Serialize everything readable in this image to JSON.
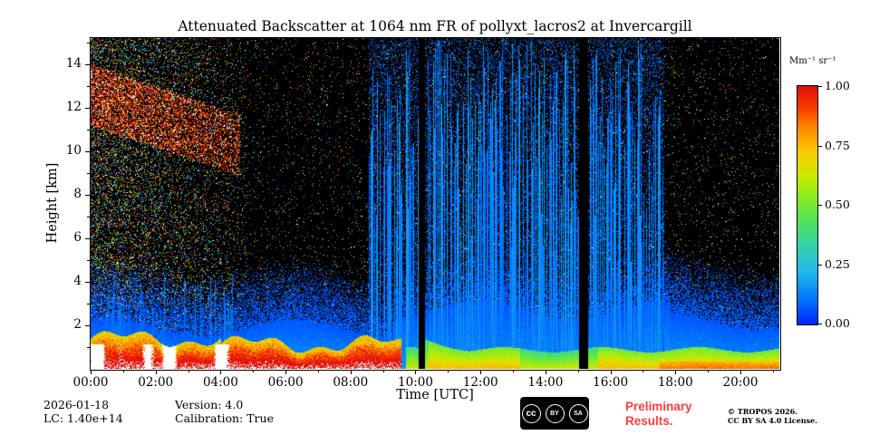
{
  "chart_data": {
    "type": "heatmap",
    "title": "Attenuated Backscatter at 1064 nm FR of pollyxt_lacros2 at Invercargill",
    "xlabel": "Time [UTC]",
    "ylabel": "Height [km]",
    "x_ticks": [
      "00:00",
      "02:00",
      "04:00",
      "06:00",
      "08:00",
      "10:00",
      "12:00",
      "14:00",
      "16:00",
      "18:00",
      "20:00"
    ],
    "x_tick_hours": [
      0,
      2,
      4,
      6,
      8,
      10,
      12,
      14,
      16,
      18,
      20
    ],
    "x_minor_hours": [
      1,
      3,
      5,
      7,
      9,
      11,
      13,
      15,
      17,
      19,
      21
    ],
    "x_range_hours": [
      0,
      21.2
    ],
    "y_ticks": [
      2,
      4,
      6,
      8,
      10,
      12,
      14
    ],
    "y_minor_ticks": [
      1,
      3,
      5,
      7,
      9,
      11,
      13,
      15
    ],
    "y_range_km": [
      0,
      15.2
    ],
    "grid": false,
    "colorbar": {
      "label": "Mm⁻¹ sr⁻¹",
      "ticks": [
        "1.00",
        "0.75",
        "0.50",
        "0.25",
        "0.00"
      ],
      "tick_values": [
        1.0,
        0.75,
        0.5,
        0.25,
        0.0
      ],
      "range": [
        0,
        1
      ],
      "position": "right"
    },
    "colormap_stops": [
      [
        0.0,
        0,
        40,
        250
      ],
      [
        0.1,
        0,
        115,
        255
      ],
      [
        0.22,
        35,
        185,
        235
      ],
      [
        0.33,
        55,
        210,
        170
      ],
      [
        0.43,
        80,
        225,
        95
      ],
      [
        0.52,
        130,
        235,
        40
      ],
      [
        0.62,
        200,
        235,
        0
      ],
      [
        0.72,
        250,
        205,
        0
      ],
      [
        0.82,
        255,
        140,
        0
      ],
      [
        0.91,
        250,
        60,
        0
      ],
      [
        1.0,
        225,
        15,
        10
      ]
    ],
    "features": {
      "surface_layer": {
        "strong_aerosol_hours": [
          0,
          9.55
        ],
        "strong_aerosol_top_km": 1.5,
        "saturated_white_hours": [
          0,
          4.3
        ],
        "moderate_green_layer_hours": [
          9.7,
          21.2
        ],
        "moderate_green_layer_top_km": 0.9
      },
      "precip_stripes_interval_hours": [
        8.55,
        17.65
      ],
      "left_stripes_interval_hours": [
        0.25,
        4.6
      ],
      "data_gap_hours": [
        [
          10.08,
          10.28
        ],
        [
          15.02,
          15.3
        ]
      ],
      "elevated_noise_band": {
        "hours": [
          0,
          4.6
        ],
        "center_km_at_0h": 12.6,
        "slope_km_per_hour": -0.5
      },
      "background": "black with speckle noise, dense multicolor noise 00:00-04:30"
    }
  },
  "footer": {
    "date": "2026-01-18",
    "lc": "LC: 1.40e+14",
    "version": "Version: 4.0",
    "calibration": "Calibration: True",
    "preliminary_line1": "Preliminary",
    "preliminary_line2": "Results.",
    "tropos_line1": "© TROPOS 2026.",
    "tropos_line2": "CC BY SA 4.0 License.",
    "cc_badge": {
      "cc": "cc",
      "by": "BY",
      "sa": "SA"
    }
  },
  "colors": {
    "preliminary_red": "#ff3b3b",
    "background": "#ffffff",
    "nodata_black": "#000000"
  }
}
